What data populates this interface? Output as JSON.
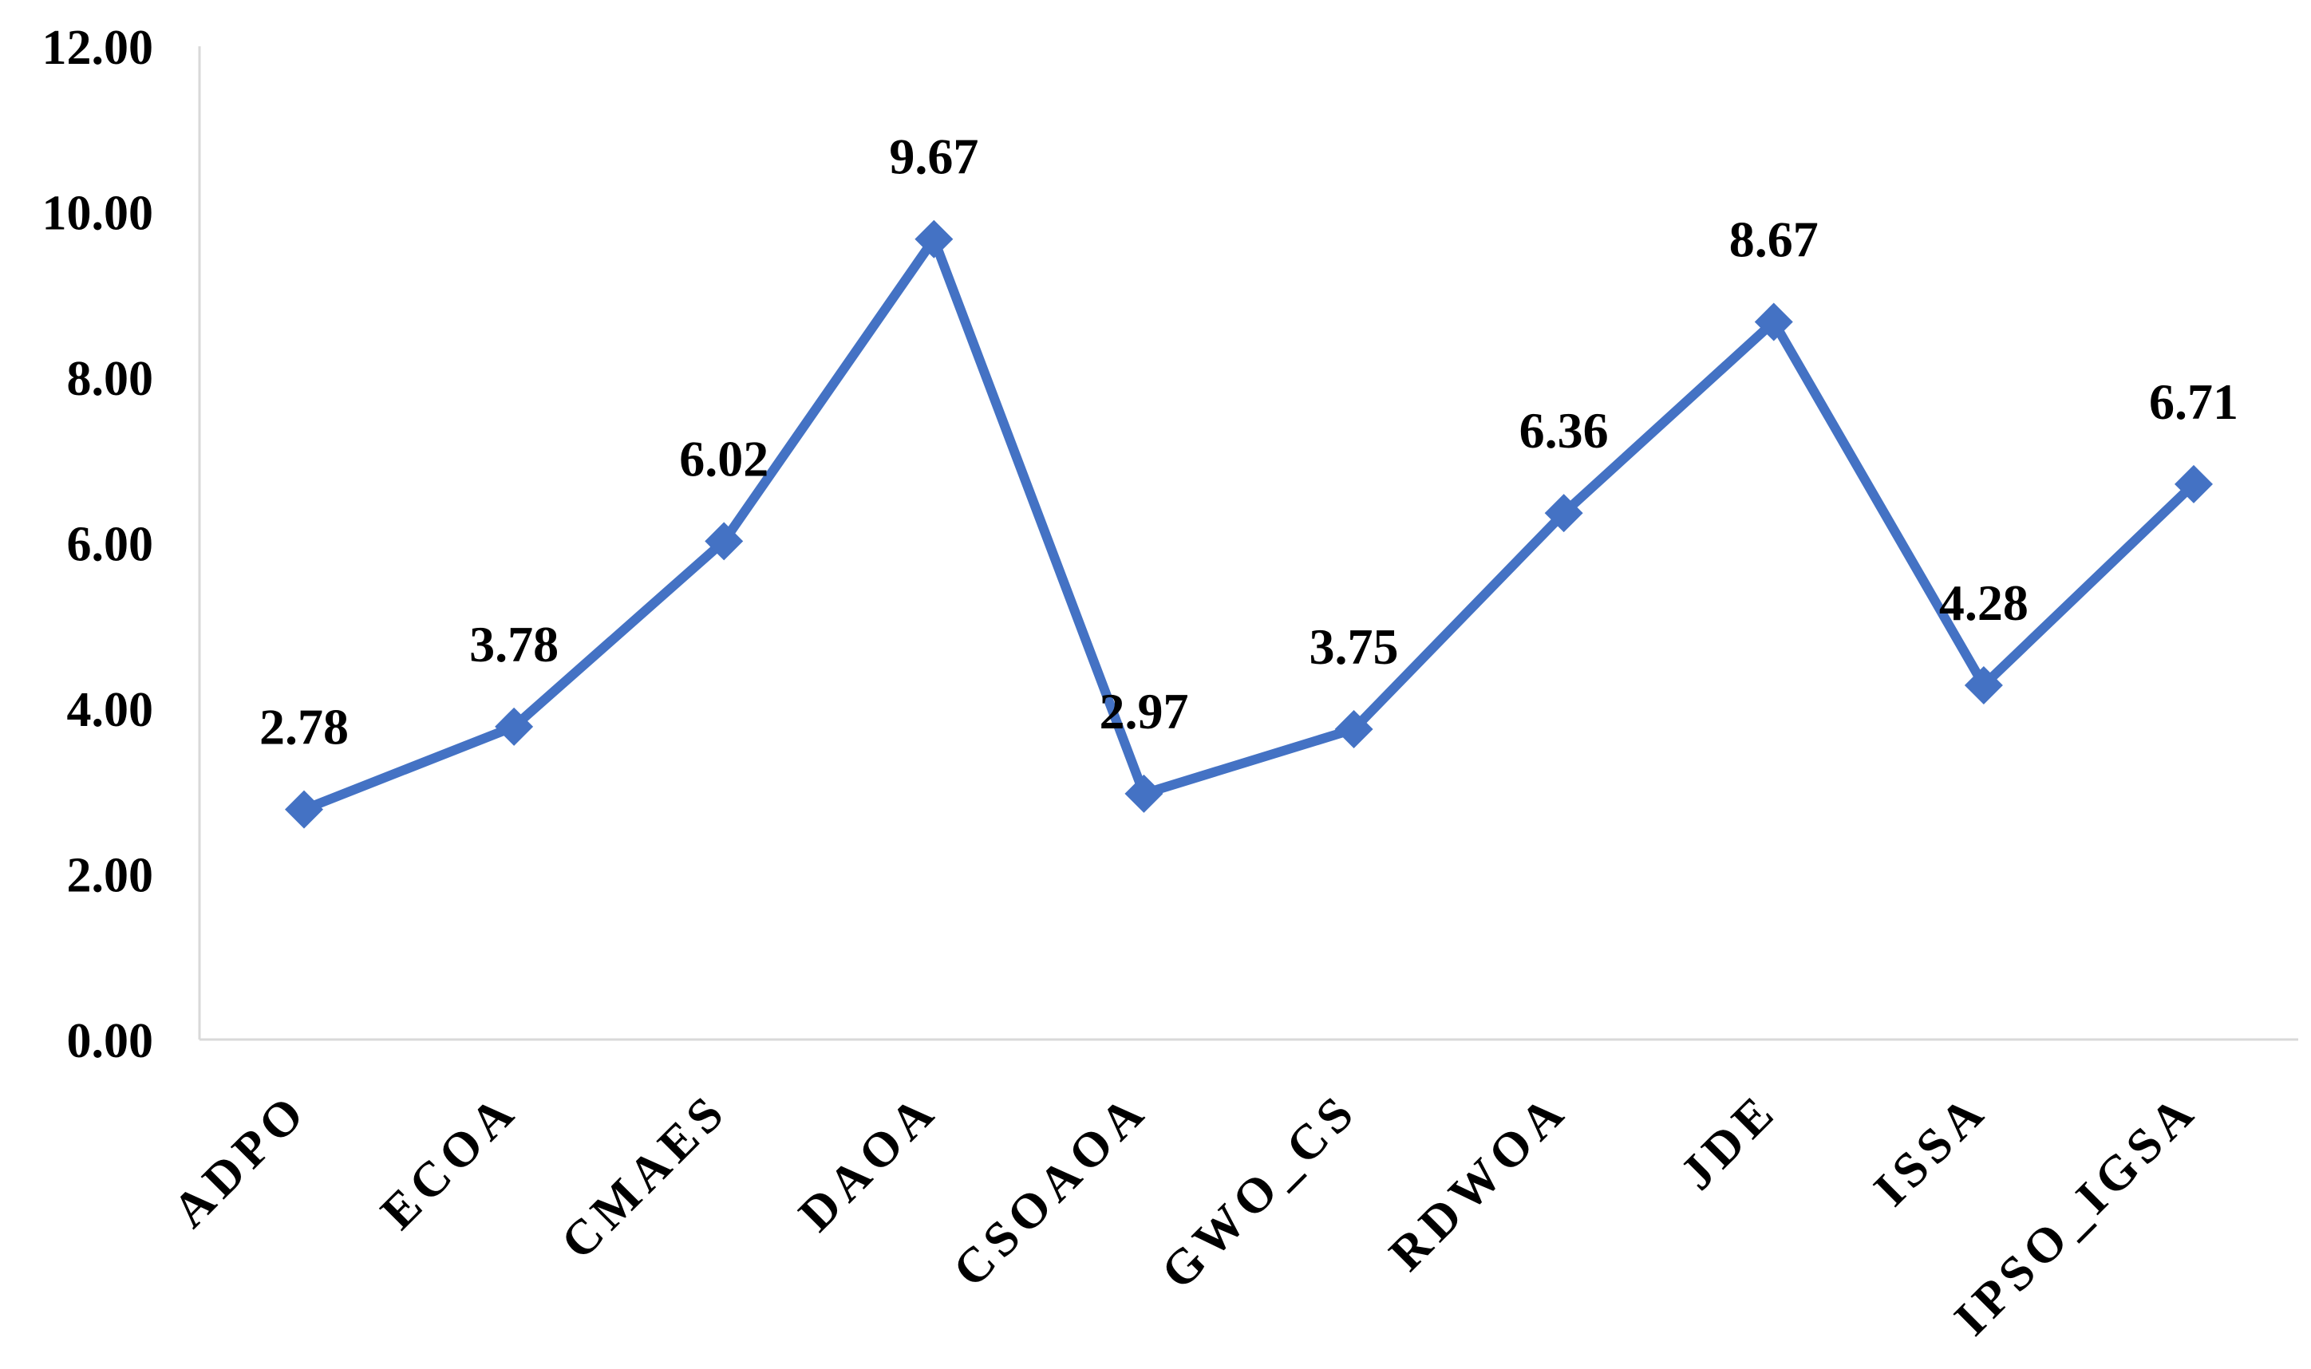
{
  "chart_data": {
    "type": "line",
    "title": "",
    "xlabel": "",
    "ylabel": "",
    "categories": [
      "ADPO",
      "ECOA",
      "CMAES",
      "DAOA",
      "CSOAOA",
      "GWO_CS",
      "RDWOA",
      "JDE",
      "ISSA",
      "IPSO_IGSA"
    ],
    "series": [
      {
        "values": [
          2.78,
          3.78,
          6.02,
          9.67,
          2.97,
          3.75,
          6.36,
          8.67,
          4.28,
          6.71
        ],
        "data_labels": [
          "2.78",
          "3.78",
          "6.02",
          "9.67",
          "2.97",
          "3.75",
          "6.36",
          "8.67",
          "4.28",
          "6.71"
        ],
        "color": "#4472C4",
        "marker": "diamond"
      }
    ],
    "ylim": [
      0,
      12
    ],
    "yticks": [
      "0.00",
      "2.00",
      "4.00",
      "6.00",
      "8.00",
      "10.00",
      "12.00"
    ],
    "grid": false,
    "legend": "none",
    "axis_color": "#D9D9D9"
  }
}
